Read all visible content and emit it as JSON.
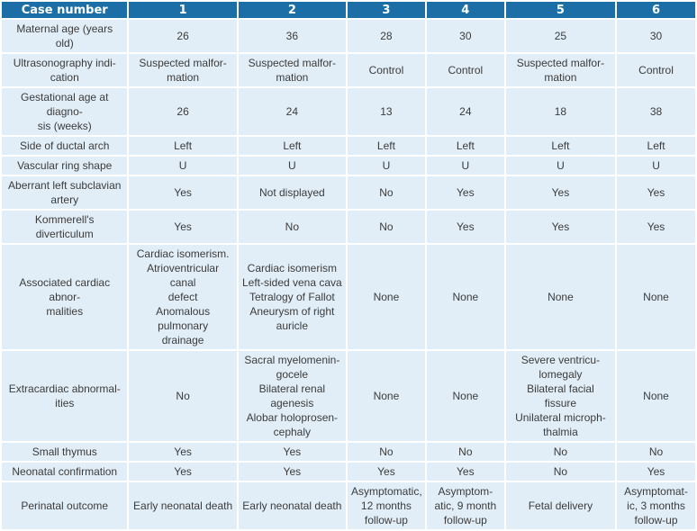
{
  "header": [
    "Case number",
    "1",
    "2",
    "3",
    "4",
    "5",
    "6"
  ],
  "rows": [
    {
      "label": "Maternal age (years old)",
      "cells": [
        "26",
        "36",
        "28",
        "30",
        "25",
        "30"
      ]
    },
    {
      "label": "Ultrasonography indi-\ncation",
      "cells": [
        "Suspected malfor-\nmation",
        "Suspected malfor-\nmation",
        "Control",
        "Control",
        "Suspected malfor-\nmation",
        "Control"
      ]
    },
    {
      "label": "Gestational age at diagno-\nsis (weeks)",
      "cells": [
        "26",
        "24",
        "13",
        "24",
        "18",
        "38"
      ]
    },
    {
      "label": "Side of ductal arch",
      "cells": [
        "Left",
        "Left",
        "Left",
        "Left",
        "Left",
        "Left"
      ]
    },
    {
      "label": "Vascular ring shape",
      "cells": [
        "U",
        "U",
        "U",
        "U",
        "U",
        "U"
      ]
    },
    {
      "label": "Aberrant left subclavian\nartery",
      "cells": [
        "Yes",
        "Not displayed",
        "No",
        "Yes",
        "Yes",
        "Yes"
      ]
    },
    {
      "label": "Kommerell's diverticulum",
      "cells": [
        "Yes",
        "No",
        "No",
        "Yes",
        "Yes",
        "Yes"
      ]
    },
    {
      "label": "Associated cardiac abnor-\nmalities",
      "cells": [
        "Cardiac isomerism.\nAtrioventricular canal\ndefect\nAnomalous pulmonary\ndrainage",
        "Cardiac isomerism\nLeft-sided vena cava\nTetralogy of Fallot\nAneurysm of right\nauricle",
        "None",
        "None",
        "None",
        "None"
      ]
    },
    {
      "label": "Extracardiac abnormal-\nities",
      "cells": [
        "No",
        "Sacral myelomenin-\ngocele\nBilateral renal agenesis\nAlobar holoprosen-\ncephaly",
        "None",
        "None",
        "Severe ventricu-\nlomegaly\nBilateral facial fissure\nUnilateral microph-\nthalmia",
        "None"
      ]
    },
    {
      "label": "Small thymus",
      "cells": [
        "Yes",
        "Yes",
        "No",
        "No",
        "No",
        "No"
      ]
    },
    {
      "label": "Neonatal confirmation",
      "cells": [
        "Yes",
        "Yes",
        "Yes",
        "Yes",
        "No",
        "Yes"
      ]
    },
    {
      "label": "Perinatal outcome",
      "cells": [
        "Early neonatal death",
        "Early neonatal death",
        "Asymptomatic,\n12 months\nfollow-up",
        "Asymptom-\natic, 9 month\nfollow-up",
        "Fetal delivery",
        "Asymptomat-\nic, 3 months\nfollow-up"
      ]
    }
  ]
}
